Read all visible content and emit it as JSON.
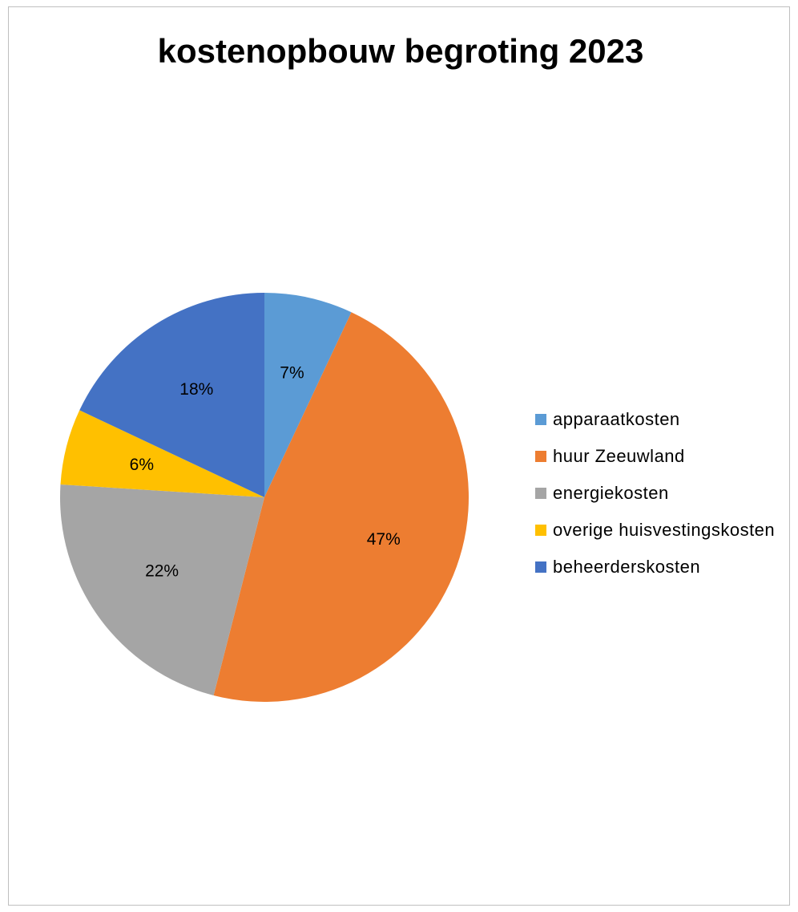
{
  "chart_data": {
    "type": "pie",
    "title": "kostenopbouw begroting 2023",
    "categories": [
      "apparaatkosten",
      "huur Zeeuwland",
      "energiekosten",
      "overige huisvestingskosten",
      "beheerderskosten"
    ],
    "values": [
      7,
      47,
      22,
      6,
      18
    ],
    "labels": [
      "7%",
      "47%",
      "22%",
      "6%",
      "18%"
    ],
    "colors": [
      "#5b9bd5",
      "#ed7d31",
      "#a5a5a5",
      "#ffc000",
      "#4472c4"
    ],
    "legend_position": "right",
    "start_angle_deg": 0,
    "direction": "clockwise"
  }
}
